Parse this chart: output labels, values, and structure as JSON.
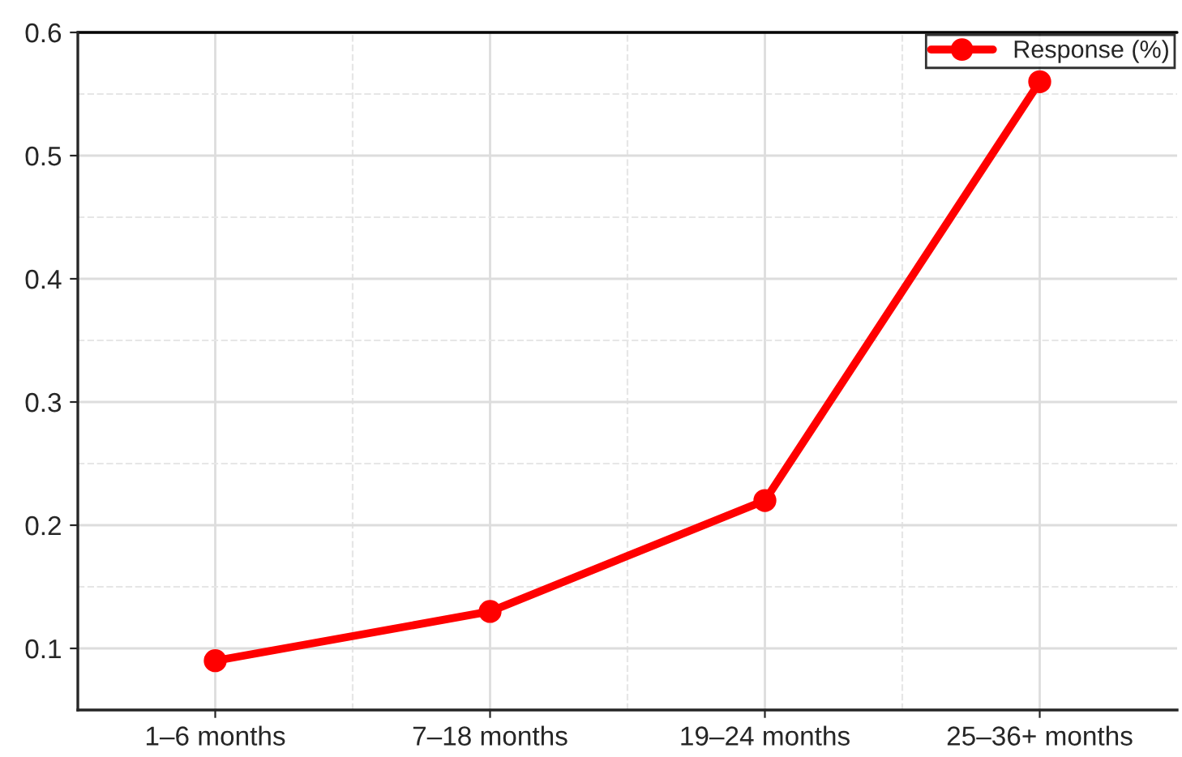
{
  "chart_data": {
    "type": "line",
    "categories": [
      "1–6 months",
      "7–18 months",
      "19–24 months",
      "25–36+ months"
    ],
    "series": [
      {
        "name": "Response (%)",
        "color": "#ff0000",
        "values": [
          0.09,
          0.13,
          0.22,
          0.56
        ]
      }
    ],
    "ylim": [
      0.05,
      0.6
    ],
    "yticks": [
      0.1,
      0.2,
      0.3,
      0.4,
      0.5,
      0.6
    ],
    "grid": true,
    "legend": "top right",
    "marker": "circle",
    "line_style": "solid"
  }
}
